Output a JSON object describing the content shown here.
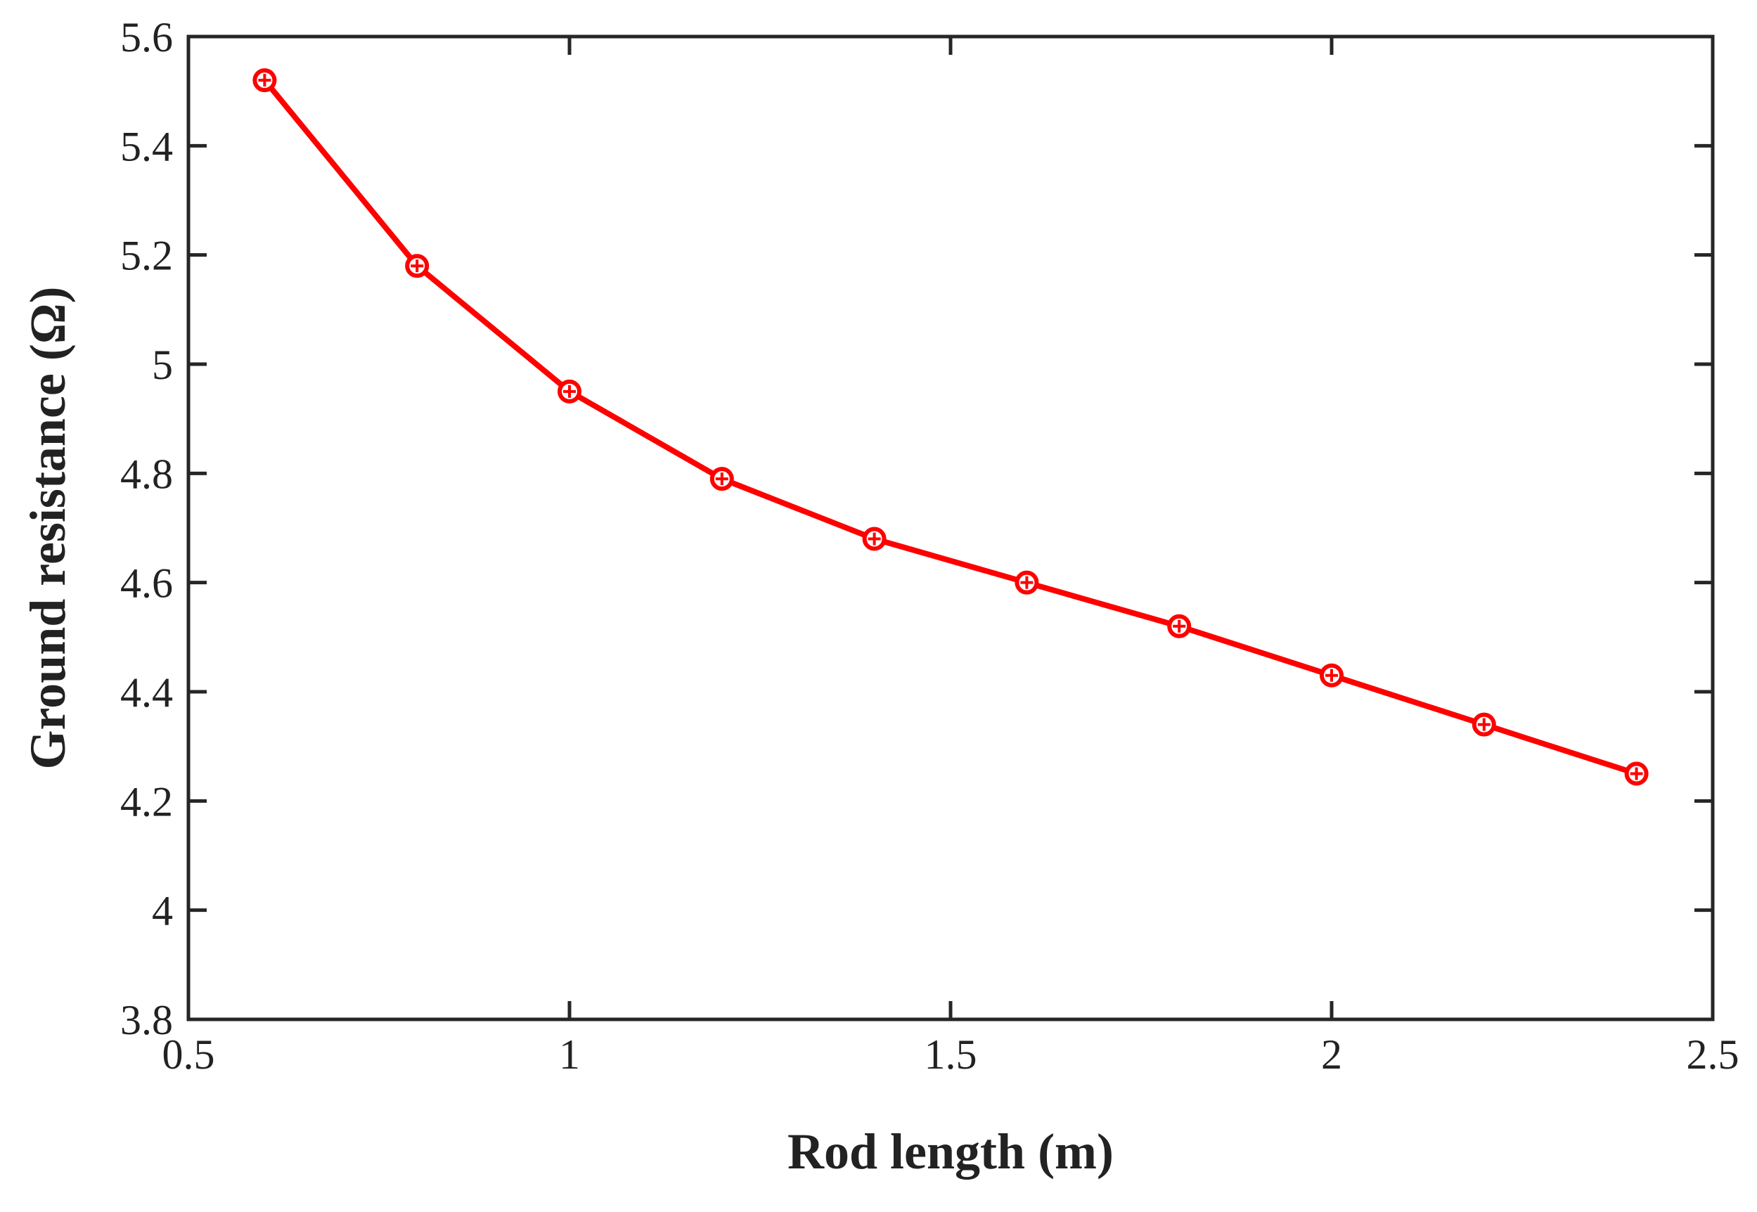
{
  "chart_data": {
    "type": "line",
    "title": "",
    "xlabel": "Rod length (m)",
    "ylabel": "Ground resistance (Ω)",
    "xlim": [
      0.5,
      2.5
    ],
    "ylim": [
      3.8,
      5.6
    ],
    "x_ticks": [
      0.5,
      1,
      1.5,
      2,
      2.5
    ],
    "x_tick_labels": [
      "0.5",
      "1",
      "1.5",
      "2",
      "2.5"
    ],
    "y_ticks": [
      3.8,
      4,
      4.2,
      4.4,
      4.6,
      4.8,
      5,
      5.2,
      5.4,
      5.6
    ],
    "y_tick_labels": [
      "3.8",
      "4",
      "4.2",
      "4.4",
      "4.6",
      "4.8",
      "5",
      "5.2",
      "5.4",
      "5.6"
    ],
    "grid": false,
    "legend": "none",
    "series": [
      {
        "color": "#ff0000",
        "marker": "circle-plus",
        "x": [
          0.6,
          0.8,
          1.0,
          1.2,
          1.4,
          1.6,
          1.8,
          2.0,
          2.2,
          2.4
        ],
        "y": [
          5.52,
          5.18,
          4.95,
          4.79,
          4.68,
          4.6,
          4.52,
          4.43,
          4.34,
          4.25
        ]
      }
    ]
  }
}
